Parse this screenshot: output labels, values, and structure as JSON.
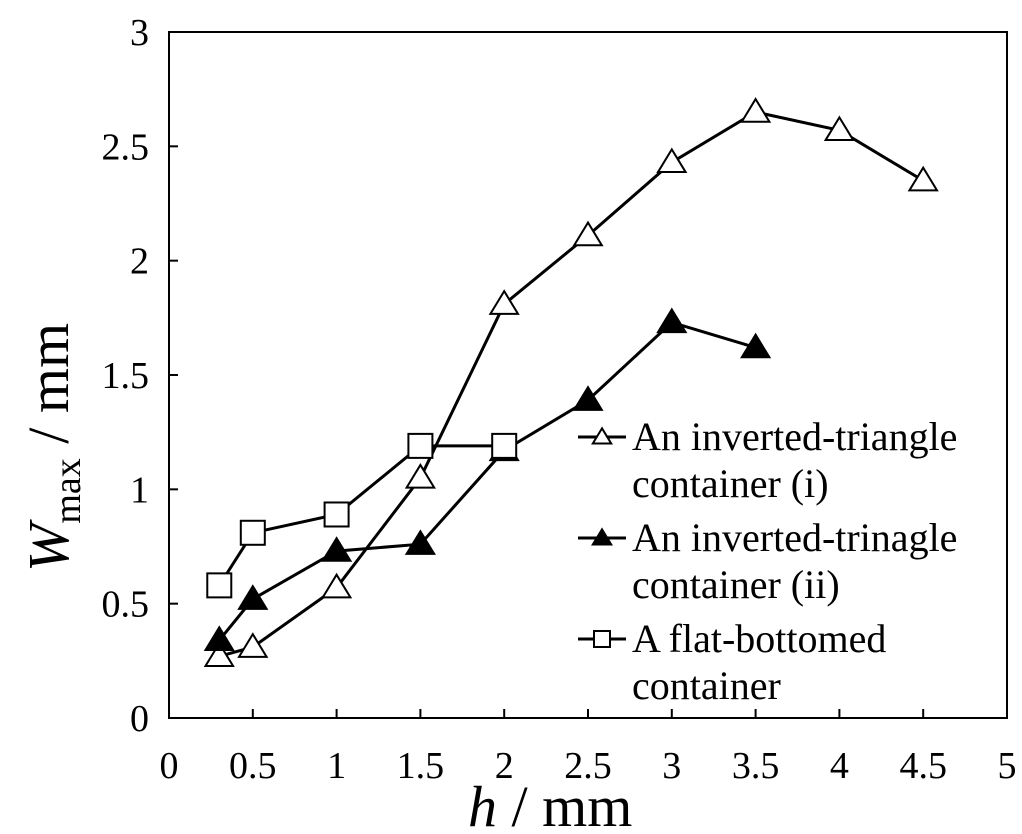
{
  "chart_data": {
    "type": "line",
    "title": "",
    "xlabel": {
      "main": "h",
      "unit": " / mm"
    },
    "ylabel": {
      "main": "W",
      "sub": "max",
      "unit": " / mm"
    },
    "xlim": [
      0,
      5
    ],
    "ylim": [
      0,
      3
    ],
    "xticks": [
      "0",
      "0.5",
      "1",
      "1.5",
      "2",
      "2.5",
      "3",
      "3.5",
      "4",
      "4.5",
      "5"
    ],
    "yticks": [
      "0",
      "0.5",
      "1",
      "1.5",
      "2",
      "2.5",
      "3"
    ],
    "grid": false,
    "legend_position": "right",
    "series": [
      {
        "name": [
          "An inverted-triangle",
          "container (i)"
        ],
        "marker": "triangle-open",
        "color": "#000000",
        "x": [
          0.3,
          0.5,
          1,
          1.5,
          2,
          2.5,
          3,
          3.5,
          4,
          4.5
        ],
        "y": [
          0.27,
          0.31,
          0.57,
          1.05,
          1.81,
          2.11,
          2.43,
          2.65,
          2.57,
          2.35
        ]
      },
      {
        "name": [
          "An inverted-trinagle",
          "container (ii)"
        ],
        "marker": "triangle-filled",
        "color": "#000000",
        "x": [
          0.3,
          0.5,
          1,
          1.5,
          2,
          2.5,
          3,
          3.5
        ],
        "y": [
          0.34,
          0.52,
          0.73,
          0.76,
          1.17,
          1.39,
          1.73,
          1.62
        ]
      },
      {
        "name": [
          "A flat-bottomed",
          "container"
        ],
        "marker": "square-open",
        "color": "#000000",
        "x": [
          0.3,
          0.5,
          1,
          1.5,
          2
        ],
        "y": [
          0.58,
          0.81,
          0.89,
          1.19,
          1.19
        ]
      }
    ]
  }
}
